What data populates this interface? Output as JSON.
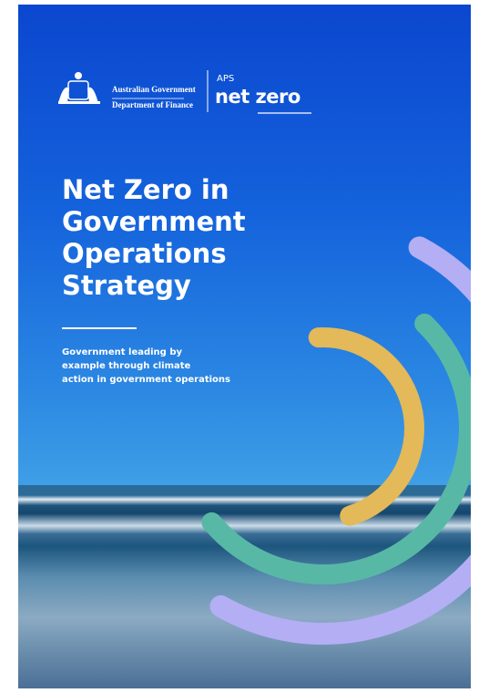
{
  "header": {
    "agency": "Australian Government",
    "department": "Department of Finance",
    "program_prefix": "APS",
    "program": "net zero"
  },
  "title_lines": [
    "Net Zero in",
    "Government",
    "Operations",
    "Strategy"
  ],
  "subtitle_lines": [
    "Government leading by",
    "example through climate",
    "action in government operations"
  ]
}
